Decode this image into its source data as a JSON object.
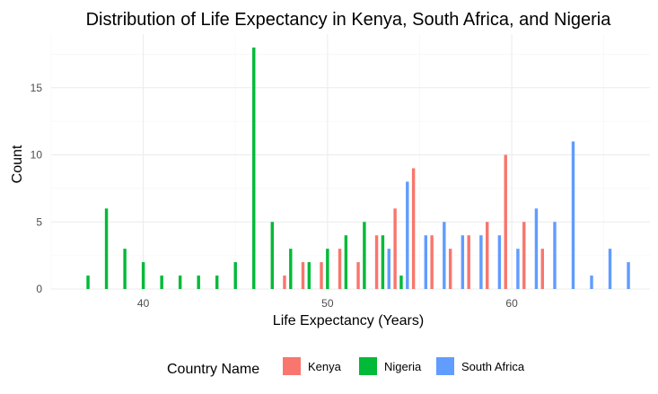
{
  "chart_data": {
    "type": "bar",
    "title": "Distribution of Life Expectancy in Kenya, South Africa, and Nigeria",
    "xlabel": "Life Expectancy (Years)",
    "ylabel": "Count",
    "xlim": [
      35,
      67.5
    ],
    "ylim": [
      0,
      19
    ],
    "x_ticks": [
      "40",
      "50",
      "60"
    ],
    "x_tick_values": [
      40,
      50,
      60
    ],
    "y_ticks": [
      "0",
      "5",
      "10",
      "15"
    ],
    "y_tick_values": [
      0,
      5,
      10,
      15
    ],
    "bin_width": 1,
    "grid": true,
    "legend_position": "bottom",
    "legend_title": "Country Name",
    "series": [
      {
        "name": "Kenya",
        "color": "#F8766D",
        "bins": [
          48,
          49,
          50,
          51,
          52,
          53,
          54,
          55,
          56,
          57,
          58,
          59,
          60,
          61,
          62
        ],
        "values": [
          1,
          2,
          2,
          3,
          2,
          4,
          6,
          9,
          4,
          3,
          4,
          5,
          10,
          5,
          3
        ]
      },
      {
        "name": "Nigeria",
        "color": "#00BA38",
        "bins": [
          37,
          38,
          39,
          40,
          41,
          42,
          43,
          44,
          45,
          46,
          47,
          48,
          49,
          50,
          51,
          52,
          53,
          54
        ],
        "values": [
          1,
          6,
          3,
          2,
          1,
          1,
          1,
          1,
          2,
          18,
          5,
          3,
          2,
          3,
          4,
          5,
          4,
          1
        ]
      },
      {
        "name": "South Africa",
        "color": "#619CFF",
        "bins": [
          53,
          54,
          55,
          56,
          57,
          58,
          59,
          60,
          61,
          62,
          63,
          64,
          65,
          66
        ],
        "values": [
          3,
          8,
          4,
          5,
          4,
          4,
          4,
          3,
          6,
          5,
          11,
          1,
          3,
          2
        ]
      }
    ]
  }
}
